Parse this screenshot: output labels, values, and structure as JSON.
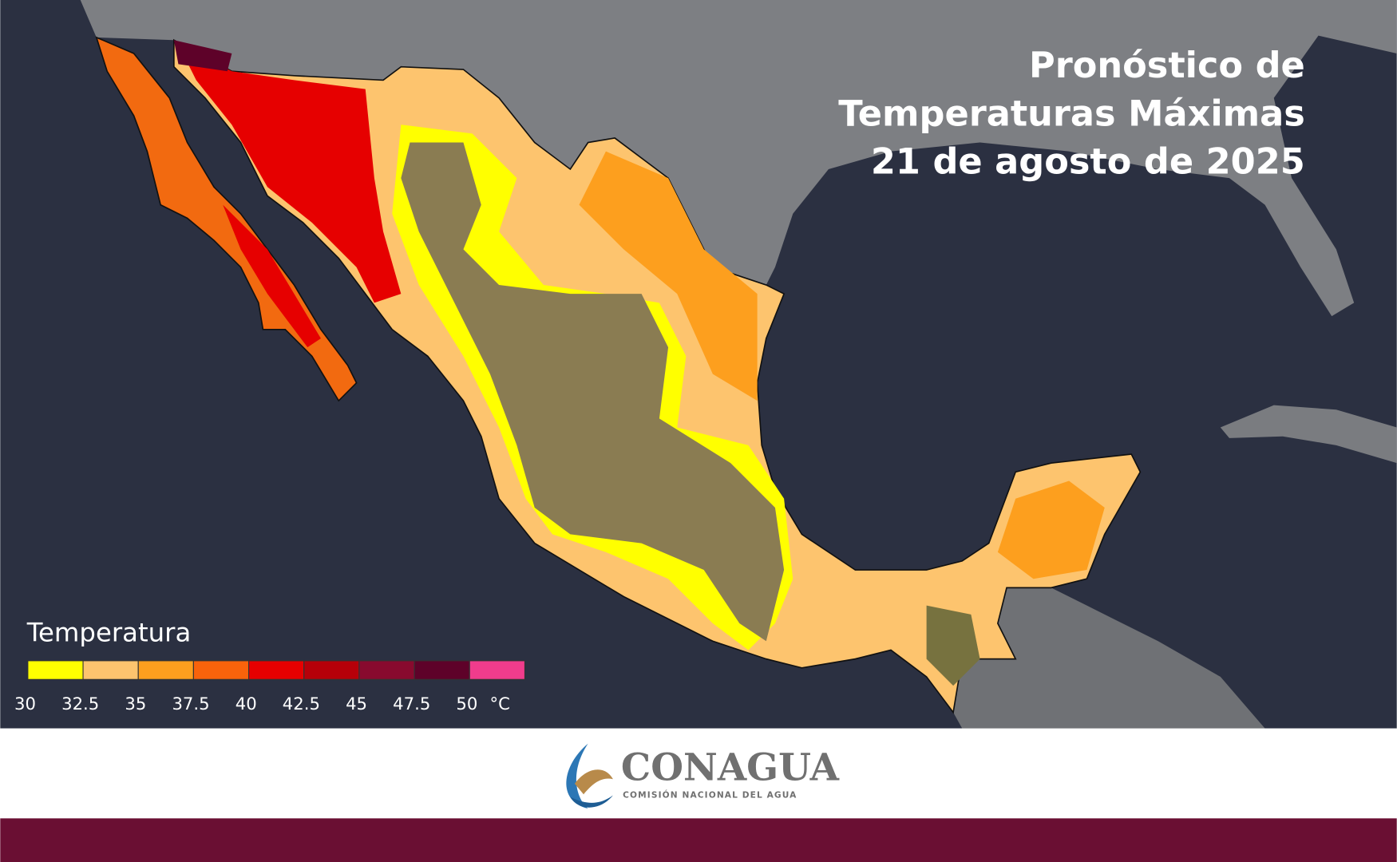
{
  "header": {
    "title_lines": [
      "Pronóstico de",
      "Temperaturas Máximas",
      "21 de agosto de 2025"
    ]
  },
  "legend": {
    "title": "Temperatura",
    "unit": "°C",
    "ticks": [
      30,
      32.5,
      35,
      37.5,
      40,
      42.5,
      45,
      47.5,
      50
    ],
    "colors": [
      "#ffff00",
      "#fdc46e",
      "#fd9f1e",
      "#f9630b",
      "#e60000",
      "#b60009",
      "#880a2e",
      "#5e0229",
      "#f03c8c"
    ]
  },
  "footer": {
    "logo": "CONAGUA",
    "logo_subtitle": "COMISIÓN NACIONAL DEL AGUA"
  }
}
